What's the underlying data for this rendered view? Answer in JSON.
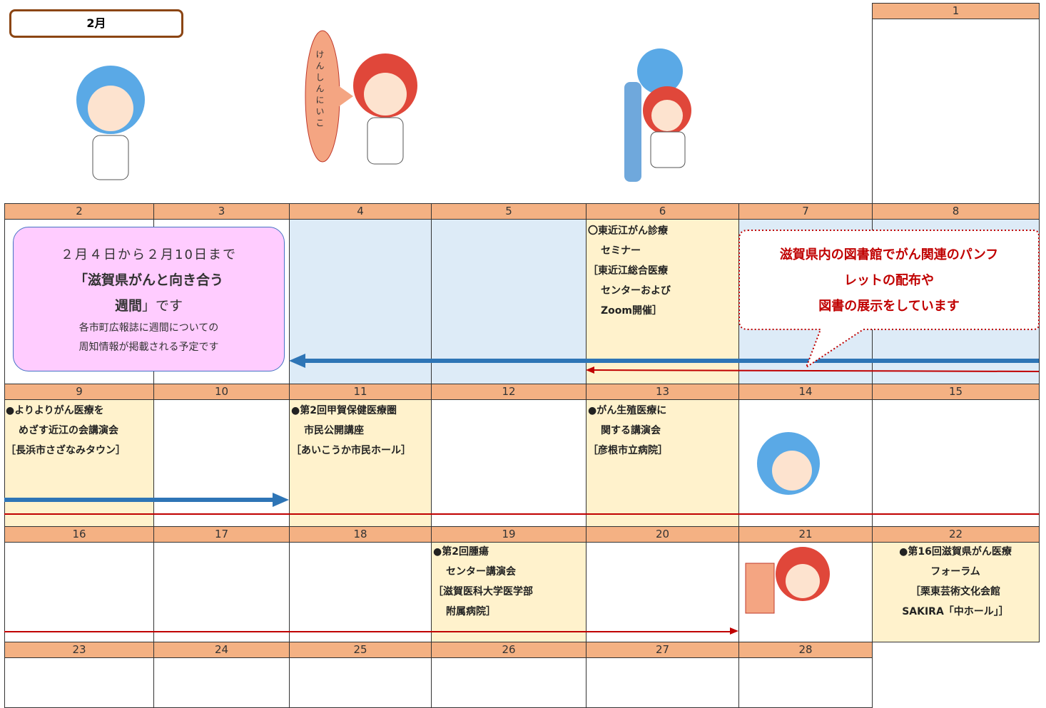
{
  "month": "2月",
  "bubble": "けんしんにいこ",
  "days": [
    1,
    2,
    3,
    4,
    5,
    6,
    7,
    8,
    9,
    10,
    11,
    12,
    13,
    14,
    15,
    16,
    17,
    18,
    19,
    20,
    21,
    22,
    23,
    24,
    25,
    26,
    27,
    28
  ],
  "notice": {
    "date": "２月４日から２月10日まで",
    "title1": "「滋賀県がんと向き合う",
    "title2": "週間",
    "title3": "」です",
    "note1": "各市町広報誌に週間についての",
    "note2": "周知情報が掲載される予定です"
  },
  "callout": [
    "滋賀県内の図書館でがん関連のパンフ",
    "レットの配布や",
    "図書の展示をしています"
  ],
  "events": [
    [
      "〇東近江がん診療",
      "セミナー",
      "［東近江総合医療",
      "センターおよび",
      "Zoom開催］"
    ],
    [
      "●よりよりがん医療を",
      "めざす近江の会講演会",
      "［長浜市さざなみタウン］"
    ],
    [
      "●第2回甲賀保健医療圏",
      "市民公開講座",
      "［あいこうか市民ホール］"
    ],
    [
      "●がん生殖医療に",
      "関する講演会",
      "［彦根市立病院］"
    ],
    [
      "●第2回腫瘍",
      "センター講演会",
      "［滋賀医科大学医学部",
      "附属病院］"
    ],
    [
      "●第16回滋賀県がん医療",
      "フォーラム",
      "［栗東芸術文化会館",
      "SAKIRA「中ホール」］"
    ]
  ]
}
